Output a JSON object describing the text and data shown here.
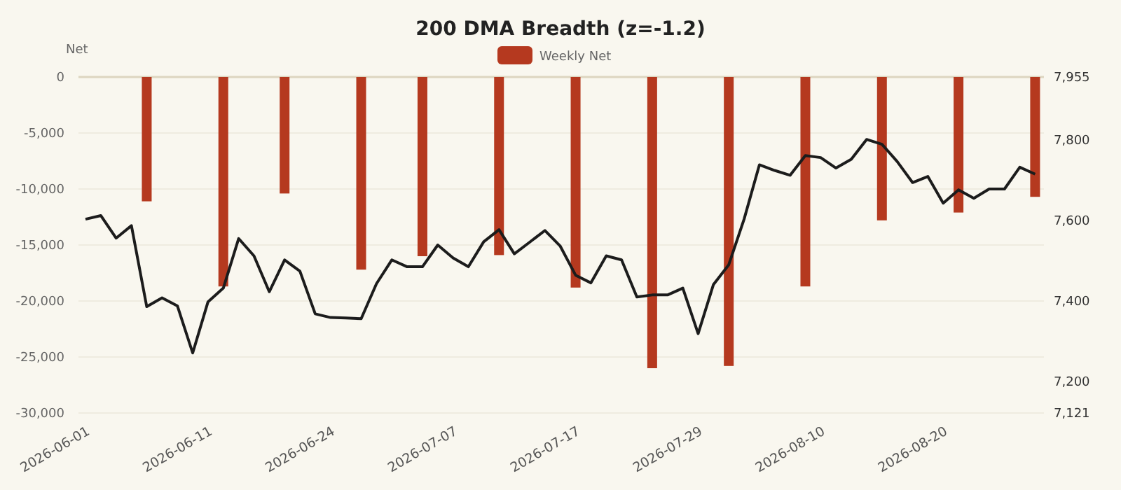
{
  "chart_data": {
    "type": "bar",
    "title": "200 DMA Breadth (z=-1.2)",
    "ylabel": "Net",
    "categories": [
      "2026-06-01",
      null,
      null,
      null,
      null,
      null,
      null,
      null,
      "2026-06-11",
      null,
      null,
      null,
      null,
      null,
      null,
      null,
      "2026-06-24",
      null,
      null,
      null,
      null,
      null,
      null,
      null,
      "2026-07-07",
      null,
      null,
      null,
      null,
      null,
      null,
      null,
      "2026-07-17",
      null,
      null,
      null,
      null,
      null,
      null,
      null,
      "2026-07-29",
      null,
      null,
      null,
      null,
      null,
      null,
      null,
      "2026-08-10",
      null,
      null,
      null,
      null,
      null,
      null,
      null,
      "2026-08-20",
      null,
      null,
      null,
      null,
      null,
      null
    ],
    "series": [
      {
        "name": "Weekly Net",
        "color": "#b5391f",
        "values": [
          null,
          null,
          null,
          null,
          -11100,
          null,
          null,
          null,
          null,
          -18700,
          null,
          null,
          null,
          -10400,
          null,
          null,
          null,
          null,
          -17200,
          null,
          null,
          null,
          -16000,
          null,
          null,
          null,
          null,
          -15900,
          null,
          null,
          null,
          null,
          -18800,
          null,
          null,
          null,
          null,
          -26000,
          null,
          null,
          null,
          null,
          -25800,
          null,
          null,
          null,
          null,
          -18700,
          null,
          null,
          null,
          null,
          -12800,
          null,
          null,
          null,
          null,
          -12100,
          null,
          null,
          null,
          null,
          -10700
        ]
      },
      {
        "type": "line",
        "axis": "y2",
        "color": "#1c1c1c",
        "marker": "none",
        "values": [
          7602,
          7611,
          7555,
          7586,
          7385,
          7407,
          7387,
          7270,
          7397,
          7431,
          7554,
          7511,
          7422,
          7501,
          7473,
          7367,
          7358,
          7357,
          7355,
          7442,
          7501,
          7484,
          7484,
          7538,
          7506,
          7484,
          7546,
          7576,
          7516,
          7545,
          7574,
          7535,
          7463,
          7444,
          7511,
          7501,
          7409,
          7414,
          7414,
          7431,
          7318,
          7440,
          7489,
          7602,
          7737,
          7723,
          7711,
          7760,
          7755,
          7729,
          7751,
          7800,
          7788,
          7745,
          7693,
          7708,
          7642,
          7675,
          7654,
          7677,
          7677,
          7731,
          7714
        ]
      }
    ],
    "ylim": [
      -30000,
      0
    ],
    "yticks": [
      {
        "value": -30000,
        "label": "-30,000"
      },
      {
        "value": -25000,
        "label": "-25,000"
      },
      {
        "value": -20000,
        "label": "-20,000"
      },
      {
        "value": -15000,
        "label": "-15,000"
      },
      {
        "value": -10000,
        "label": "-10,000"
      },
      {
        "value": -5000,
        "label": "-5,000"
      },
      0
    ],
    "y2lim": [
      7121,
      7955
    ],
    "y2ticks": [
      {
        "value": 7121,
        "label": "7,121"
      },
      {
        "value": 7200,
        "label": "7,200"
      },
      {
        "value": 7400,
        "label": "7,400"
      },
      {
        "value": 7600,
        "label": "7,600"
      },
      {
        "value": 7800,
        "label": "7,800"
      },
      {
        "value": 7955,
        "label": "7,955"
      }
    ],
    "grid": "y",
    "legend": "top"
  }
}
